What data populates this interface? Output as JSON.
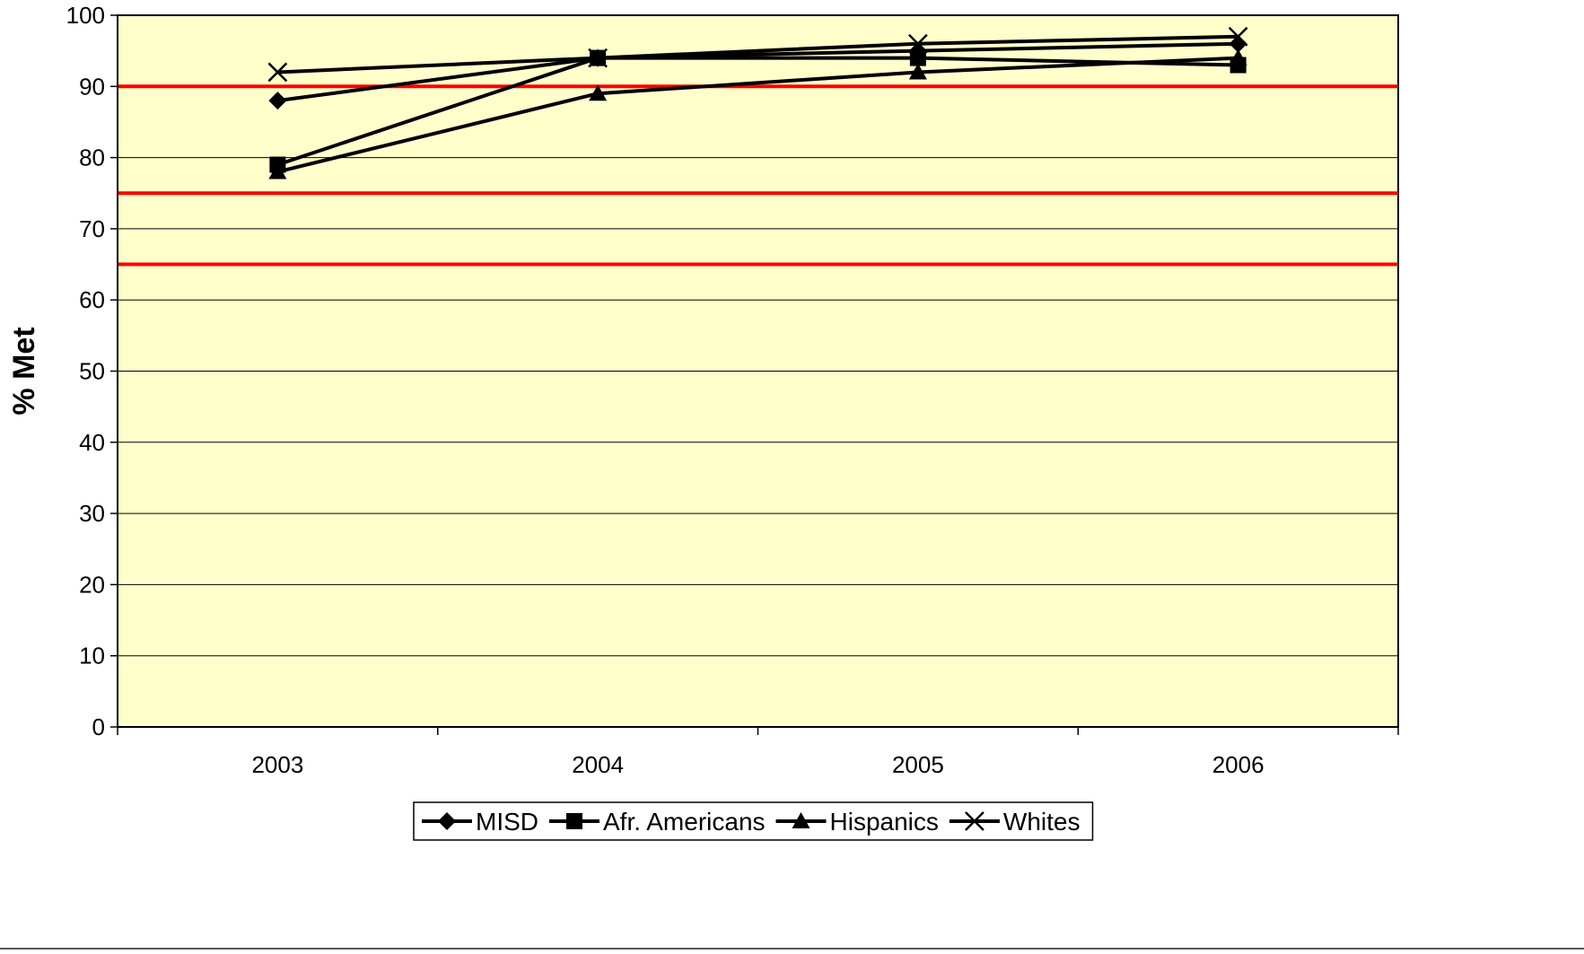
{
  "chart_data": {
    "type": "line",
    "categories": [
      "2003",
      "2004",
      "2005",
      "2006"
    ],
    "series": [
      {
        "name": "MISD",
        "marker": "diamond",
        "values": [
          88,
          94,
          95,
          96
        ]
      },
      {
        "name": "Afr. Americans",
        "marker": "square",
        "values": [
          79,
          94,
          94,
          93
        ]
      },
      {
        "name": "Hispanics",
        "marker": "triangle",
        "values": [
          78,
          89,
          92,
          94
        ]
      },
      {
        "name": "Whites",
        "marker": "x",
        "values": [
          92,
          94,
          96,
          97
        ]
      }
    ],
    "reference_lines": [
      90,
      75,
      65
    ],
    "ylabel": "% Met",
    "xlabel": "",
    "title": "",
    "ylim": [
      0,
      100
    ],
    "yticks": [
      "0",
      "10",
      "20",
      "30",
      "40",
      "50",
      "60",
      "70",
      "80",
      "90",
      "100"
    ],
    "grid": true,
    "legend_position": "bottom",
    "colors": {
      "plot_background": "#FFFFCC",
      "series_line": "#000000",
      "reference_line": "#FF0000",
      "gridline": "#000000"
    }
  }
}
